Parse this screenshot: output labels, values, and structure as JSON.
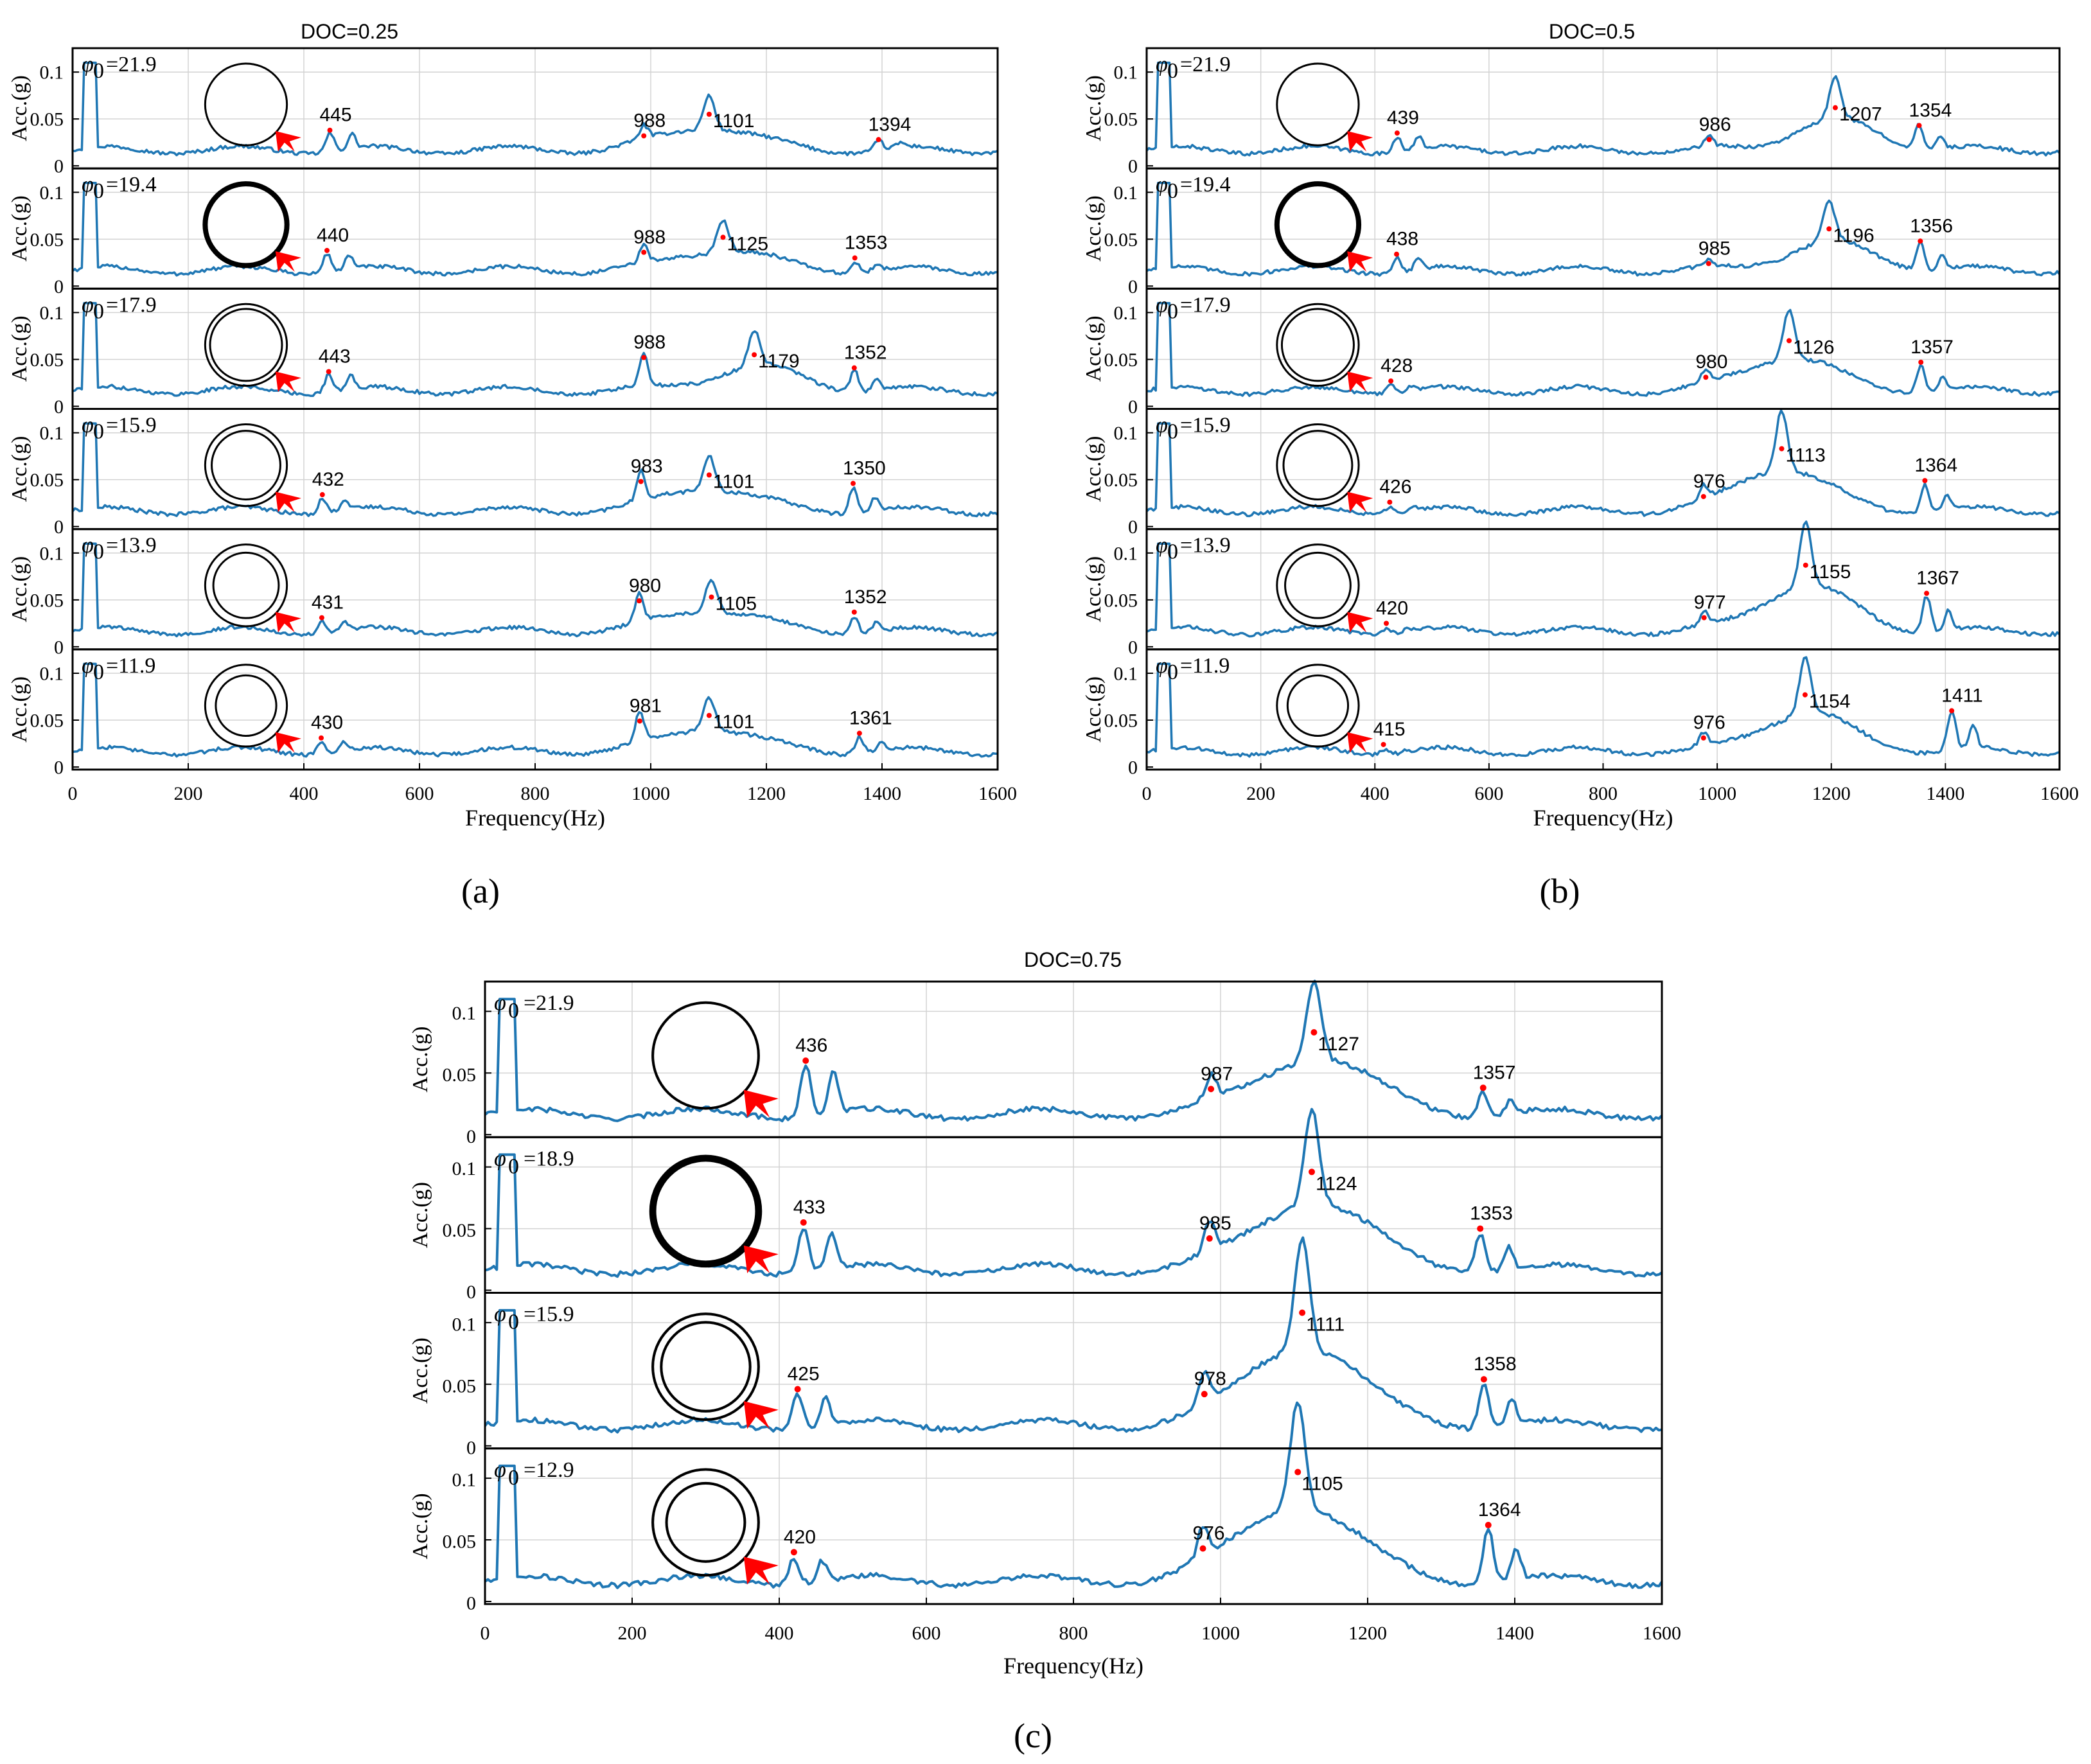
{
  "colors": {
    "line": "#1f77b4",
    "peak": "#ff0000",
    "arrow": "#ff0000",
    "axis": "#000000",
    "grid": "#d3d3d3"
  },
  "common": {
    "xlabel": "Frequency(Hz)",
    "ylabel": "Acc.(g)",
    "xlim": [
      0,
      1600
    ],
    "ylim": [
      0,
      0.12
    ],
    "xticks": [
      "0",
      "200",
      "400",
      "600",
      "800",
      "1000",
      "1200",
      "1400",
      "1600"
    ],
    "yticks": [
      "0",
      "0.05",
      "0.1"
    ],
    "phi_symbol": "φ",
    "phi_sub": "0"
  },
  "chart_data": [
    {
      "type": "line",
      "panel_label": "(a)",
      "title": "DOC=0.25",
      "subplots": [
        {
          "phi": "=21.9",
          "ring": "single",
          "peaks": [
            {
              "x": 445,
              "y": 0.038,
              "label": "445"
            },
            {
              "x": 988,
              "y": 0.032,
              "label": "988"
            },
            {
              "x": 1101,
              "y": 0.055,
              "label": "1101"
            },
            {
              "x": 1394,
              "y": 0.028,
              "label": "1394"
            }
          ]
        },
        {
          "phi": "=19.4",
          "ring": "thick",
          "peaks": [
            {
              "x": 440,
              "y": 0.038,
              "label": "440"
            },
            {
              "x": 988,
              "y": 0.036,
              "label": "988"
            },
            {
              "x": 1125,
              "y": 0.052,
              "label": "1125"
            },
            {
              "x": 1353,
              "y": 0.03,
              "label": "1353"
            }
          ]
        },
        {
          "phi": "=17.9",
          "ring": "double",
          "peaks": [
            {
              "x": 443,
              "y": 0.037,
              "label": "443"
            },
            {
              "x": 988,
              "y": 0.052,
              "label": "988"
            },
            {
              "x": 1179,
              "y": 0.055,
              "label": "1179"
            },
            {
              "x": 1352,
              "y": 0.041,
              "label": "1352"
            }
          ]
        },
        {
          "phi": "=15.9",
          "ring": "double-wide",
          "peaks": [
            {
              "x": 432,
              "y": 0.034,
              "label": "432"
            },
            {
              "x": 983,
              "y": 0.048,
              "label": "983"
            },
            {
              "x": 1101,
              "y": 0.055,
              "label": "1101"
            },
            {
              "x": 1350,
              "y": 0.046,
              "label": "1350"
            }
          ]
        },
        {
          "phi": "=13.9",
          "ring": "double-wider",
          "peaks": [
            {
              "x": 431,
              "y": 0.031,
              "label": "431"
            },
            {
              "x": 980,
              "y": 0.049,
              "label": "980"
            },
            {
              "x": 1105,
              "y": 0.053,
              "label": "1105"
            },
            {
              "x": 1352,
              "y": 0.037,
              "label": "1352"
            }
          ]
        },
        {
          "phi": "=11.9",
          "ring": "double-widest",
          "peaks": [
            {
              "x": 430,
              "y": 0.031,
              "label": "430"
            },
            {
              "x": 981,
              "y": 0.049,
              "label": "981"
            },
            {
              "x": 1101,
              "y": 0.055,
              "label": "1101"
            },
            {
              "x": 1361,
              "y": 0.036,
              "label": "1361"
            }
          ]
        }
      ]
    },
    {
      "type": "line",
      "panel_label": "(b)",
      "title": "DOC=0.5",
      "subplots": [
        {
          "phi": "=21.9",
          "ring": "single",
          "peaks": [
            {
              "x": 439,
              "y": 0.035,
              "label": "439"
            },
            {
              "x": 986,
              "y": 0.028,
              "label": "986"
            },
            {
              "x": 1207,
              "y": 0.062,
              "label": "1207"
            },
            {
              "x": 1354,
              "y": 0.043,
              "label": "1354"
            }
          ]
        },
        {
          "phi": "=19.4",
          "ring": "thick",
          "peaks": [
            {
              "x": 438,
              "y": 0.034,
              "label": "438"
            },
            {
              "x": 985,
              "y": 0.024,
              "label": "985"
            },
            {
              "x": 1196,
              "y": 0.061,
              "label": "1196"
            },
            {
              "x": 1356,
              "y": 0.048,
              "label": "1356"
            }
          ]
        },
        {
          "phi": "=17.9",
          "ring": "double",
          "peaks": [
            {
              "x": 428,
              "y": 0.027,
              "label": "428"
            },
            {
              "x": 980,
              "y": 0.031,
              "label": "980"
            },
            {
              "x": 1126,
              "y": 0.07,
              "label": "1126"
            },
            {
              "x": 1357,
              "y": 0.047,
              "label": "1357"
            }
          ]
        },
        {
          "phi": "=15.9",
          "ring": "double-wide",
          "peaks": [
            {
              "x": 426,
              "y": 0.026,
              "label": "426"
            },
            {
              "x": 976,
              "y": 0.032,
              "label": "976"
            },
            {
              "x": 1113,
              "y": 0.083,
              "label": "1113"
            },
            {
              "x": 1364,
              "y": 0.049,
              "label": "1364"
            }
          ]
        },
        {
          "phi": "=13.9",
          "ring": "double-wider",
          "peaks": [
            {
              "x": 420,
              "y": 0.025,
              "label": "420"
            },
            {
              "x": 977,
              "y": 0.031,
              "label": "977"
            },
            {
              "x": 1155,
              "y": 0.087,
              "label": "1155"
            },
            {
              "x": 1367,
              "y": 0.057,
              "label": "1367"
            }
          ]
        },
        {
          "phi": "=11.9",
          "ring": "double-widest",
          "peaks": [
            {
              "x": 415,
              "y": 0.024,
              "label": "415"
            },
            {
              "x": 976,
              "y": 0.031,
              "label": "976"
            },
            {
              "x": 1154,
              "y": 0.077,
              "label": "1154"
            },
            {
              "x": 1411,
              "y": 0.06,
              "label": "1411"
            }
          ]
        }
      ]
    },
    {
      "type": "line",
      "panel_label": "(c)",
      "title": "DOC=0.75",
      "subplots": [
        {
          "phi": "=21.9",
          "ring": "single",
          "peaks": [
            {
              "x": 436,
              "y": 0.06,
              "label": "436"
            },
            {
              "x": 987,
              "y": 0.037,
              "label": "987"
            },
            {
              "x": 1127,
              "y": 0.083,
              "label": "1127"
            },
            {
              "x": 1357,
              "y": 0.038,
              "label": "1357"
            }
          ]
        },
        {
          "phi": "=18.9",
          "ring": "thick",
          "peaks": [
            {
              "x": 433,
              "y": 0.055,
              "label": "433"
            },
            {
              "x": 985,
              "y": 0.042,
              "label": "985"
            },
            {
              "x": 1124,
              "y": 0.096,
              "label": "1124"
            },
            {
              "x": 1353,
              "y": 0.05,
              "label": "1353"
            }
          ]
        },
        {
          "phi": "=15.9",
          "ring": "double-wide",
          "peaks": [
            {
              "x": 425,
              "y": 0.046,
              "label": "425"
            },
            {
              "x": 978,
              "y": 0.042,
              "label": "978"
            },
            {
              "x": 1111,
              "y": 0.108,
              "label": "1111"
            },
            {
              "x": 1358,
              "y": 0.054,
              "label": "1358"
            }
          ]
        },
        {
          "phi": "=12.9",
          "ring": "double-widest",
          "peaks": [
            {
              "x": 420,
              "y": 0.04,
              "label": "420"
            },
            {
              "x": 976,
              "y": 0.043,
              "label": "976"
            },
            {
              "x": 1105,
              "y": 0.105,
              "label": "1105"
            },
            {
              "x": 1364,
              "y": 0.062,
              "label": "1364"
            }
          ]
        }
      ]
    }
  ]
}
